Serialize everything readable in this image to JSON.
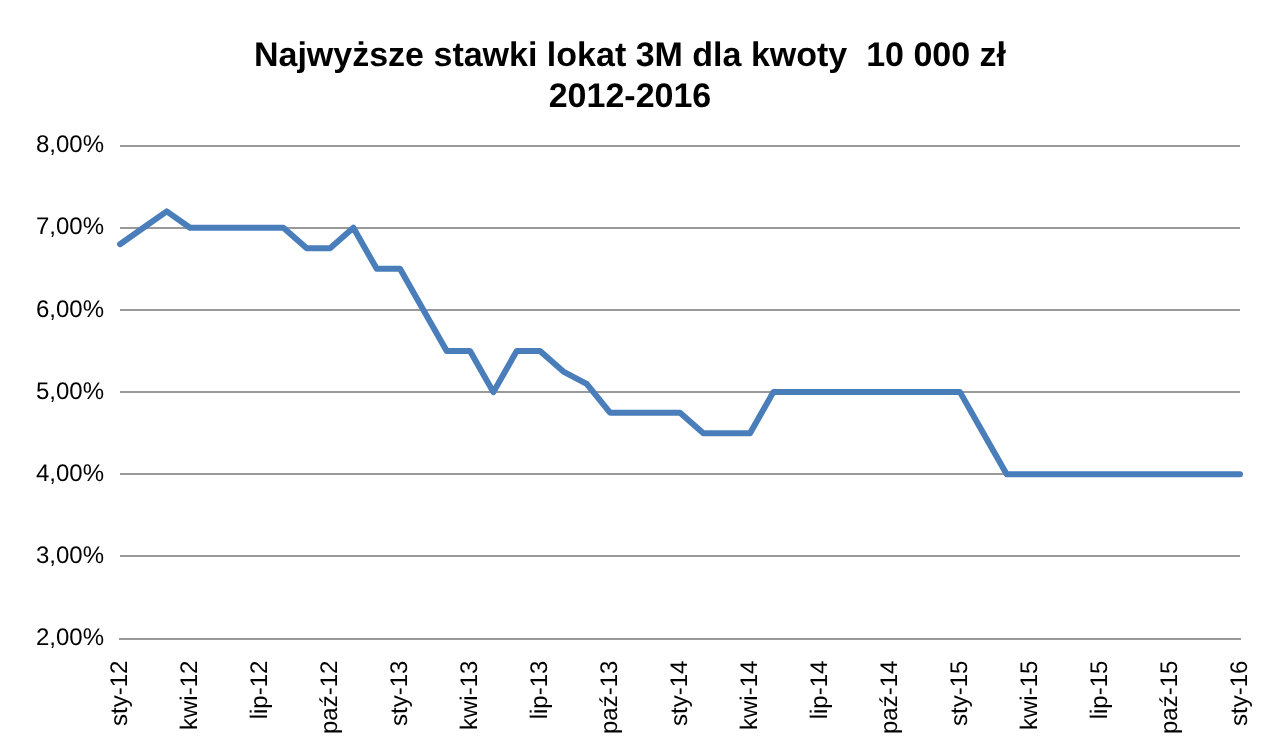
{
  "chart_data": {
    "type": "line",
    "title": "Najwyższe stawki lokat 3M dla kwoty  10 000 zł",
    "subtitle": "2012-2016",
    "categories": [
      "sty-12",
      null,
      null,
      "kwi-12",
      null,
      null,
      "lip-12",
      null,
      null,
      "paź-12",
      null,
      null,
      "sty-13",
      null,
      null,
      "kwi-13",
      null,
      null,
      "lip-13",
      null,
      null,
      "paź-13",
      null,
      null,
      "sty-14",
      null,
      null,
      "kwi-14",
      null,
      null,
      "lip-14",
      null,
      null,
      "paź-14",
      null,
      null,
      "sty-15",
      null,
      null,
      "kwi-15",
      null,
      null,
      "lip-15",
      null,
      null,
      "paź-15",
      null,
      null,
      "sty-16"
    ],
    "series": [
      {
        "color": "#4a7ebb",
        "values": [
          6.8,
          7.0,
          7.2,
          7.0,
          7.0,
          7.0,
          7.0,
          7.0,
          6.75,
          6.75,
          7.0,
          6.5,
          6.5,
          6.0,
          5.5,
          5.5,
          5.0,
          5.5,
          5.5,
          5.25,
          5.1,
          4.75,
          4.75,
          4.75,
          4.75,
          4.5,
          4.5,
          4.5,
          5.0,
          5.0,
          5.0,
          5.0,
          5.0,
          5.0,
          5.0,
          5.0,
          5.0,
          4.5,
          4.0,
          4.0,
          4.0,
          4.0,
          4.0,
          4.0,
          4.0,
          4.0,
          4.0,
          4.0,
          4.0
        ]
      }
    ],
    "ylim": [
      2,
      8
    ],
    "yticks": [
      {
        "value": 2,
        "label": "2,00%"
      },
      {
        "value": 3,
        "label": "3,00%"
      },
      {
        "value": 4,
        "label": "4,00%"
      },
      {
        "value": 5,
        "label": "5,00%"
      },
      {
        "value": 6,
        "label": "6,00%"
      },
      {
        "value": 7,
        "label": "7,00%"
      },
      {
        "value": 8,
        "label": "8,00%"
      }
    ],
    "grid": "y",
    "legend": false,
    "marker": "none",
    "line_style": "solid"
  }
}
